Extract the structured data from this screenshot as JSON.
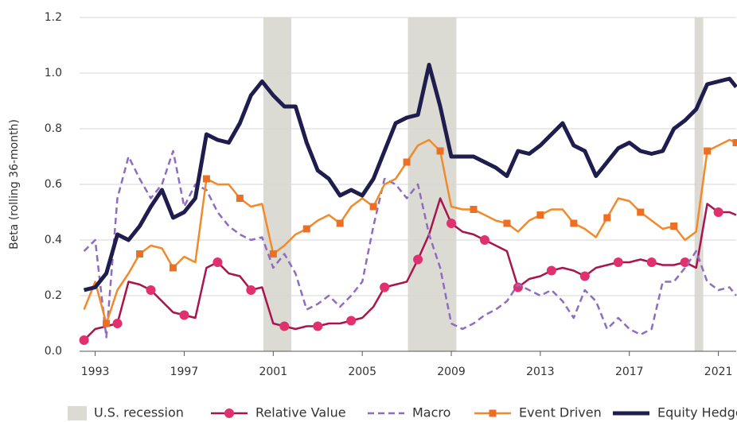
{
  "chart_data": {
    "type": "line",
    "y_label": "Beta (rolling 36-month)",
    "x": [
      1992.5,
      1993,
      1993.5,
      1994,
      1994.5,
      1995,
      1995.5,
      1996,
      1996.5,
      1997,
      1997.5,
      1998,
      1998.5,
      1999,
      1999.5,
      2000,
      2000.5,
      2001,
      2001.5,
      2002,
      2002.5,
      2003,
      2003.5,
      2004,
      2004.5,
      2005,
      2005.5,
      2006,
      2006.5,
      2007,
      2007.5,
      2008,
      2008.5,
      2009,
      2009.5,
      2010,
      2010.5,
      2011,
      2011.5,
      2012,
      2012.5,
      2013,
      2013.5,
      2014,
      2014.5,
      2015,
      2015.5,
      2016,
      2016.5,
      2017,
      2017.5,
      2018,
      2018.5,
      2019,
      2019.5,
      2020,
      2020.5,
      2021,
      2021.5,
      2021.8
    ],
    "xlim": [
      1992.3,
      2021.8
    ],
    "xticks": [
      1993,
      1997,
      2001,
      2005,
      2009,
      2013,
      2017,
      2021
    ],
    "ylim": [
      0,
      1.2
    ],
    "yticks": [
      {
        "value": 0,
        "label": "0.0"
      },
      0.2,
      0.4,
      0.6,
      0.8,
      {
        "value": 1,
        "label": "1.0"
      },
      1.2
    ],
    "grid": true,
    "legend_position": "bottom",
    "shaded_regions": {
      "name": "U.S. recession",
      "color": "#dcdbd3",
      "ranges": [
        [
          2000.56,
          2001.81
        ],
        [
          2007.05,
          2009.23
        ],
        [
          2019.93,
          2020.32
        ]
      ]
    },
    "series": [
      {
        "name": "Relative Value",
        "color": "#a8154c",
        "marker": "circle",
        "marker_color": "#e0306f",
        "line_width": 2.5,
        "line_style": "solid",
        "values": [
          0.04,
          0.08,
          0.09,
          0.1,
          0.25,
          0.24,
          0.22,
          0.18,
          0.14,
          0.13,
          0.12,
          0.3,
          0.32,
          0.28,
          0.27,
          0.22,
          0.23,
          0.1,
          0.09,
          0.08,
          0.09,
          0.09,
          0.1,
          0.1,
          0.11,
          0.12,
          0.16,
          0.23,
          0.24,
          0.25,
          0.33,
          0.42,
          0.55,
          0.46,
          0.43,
          0.42,
          0.4,
          0.38,
          0.36,
          0.23,
          0.26,
          0.27,
          0.29,
          0.3,
          0.29,
          0.27,
          0.3,
          0.31,
          0.32,
          0.32,
          0.33,
          0.32,
          0.31,
          0.31,
          0.32,
          0.3,
          0.53,
          0.5,
          0.5,
          0.49
        ]
      },
      {
        "name": "Macro",
        "color": "#8e6cc0",
        "marker": "none",
        "marker_color": "#8e6cc0",
        "line_width": 2.5,
        "line_style": "dashed",
        "values": [
          0.36,
          0.4,
          0.05,
          0.55,
          0.7,
          0.62,
          0.55,
          0.6,
          0.72,
          0.52,
          0.6,
          0.58,
          0.5,
          0.45,
          0.42,
          0.4,
          0.41,
          0.3,
          0.35,
          0.28,
          0.15,
          0.17,
          0.2,
          0.16,
          0.2,
          0.25,
          0.45,
          0.62,
          0.6,
          0.55,
          0.6,
          0.42,
          0.3,
          0.1,
          0.08,
          0.1,
          0.13,
          0.15,
          0.18,
          0.24,
          0.22,
          0.2,
          0.22,
          0.18,
          0.12,
          0.22,
          0.18,
          0.08,
          0.12,
          0.08,
          0.06,
          0.08,
          0.25,
          0.25,
          0.3,
          0.36,
          0.25,
          0.22,
          0.23,
          0.2
        ]
      },
      {
        "name": "Event Driven",
        "color": "#f18a2b",
        "marker": "square",
        "marker_color": "#ec6f24",
        "line_width": 2.5,
        "line_style": "solid",
        "values": [
          0.15,
          0.25,
          0.1,
          0.22,
          0.28,
          0.35,
          0.38,
          0.37,
          0.3,
          0.34,
          0.32,
          0.62,
          0.6,
          0.6,
          0.55,
          0.52,
          0.53,
          0.35,
          0.38,
          0.42,
          0.44,
          0.47,
          0.49,
          0.46,
          0.52,
          0.55,
          0.52,
          0.6,
          0.62,
          0.68,
          0.74,
          0.76,
          0.72,
          0.52,
          0.51,
          0.51,
          0.49,
          0.47,
          0.46,
          0.43,
          0.47,
          0.49,
          0.51,
          0.51,
          0.46,
          0.44,
          0.41,
          0.48,
          0.55,
          0.54,
          0.5,
          0.47,
          0.44,
          0.45,
          0.4,
          0.43,
          0.72,
          0.74,
          0.76,
          0.75
        ]
      },
      {
        "name": "Equity Hedge",
        "color": "#1f1d4d",
        "marker": "none",
        "marker_color": "#1f1d4d",
        "line_width": 5,
        "line_style": "solid",
        "values": [
          0.22,
          0.23,
          0.28,
          0.42,
          0.4,
          0.45,
          0.52,
          0.58,
          0.48,
          0.5,
          0.55,
          0.78,
          0.76,
          0.75,
          0.82,
          0.92,
          0.97,
          0.92,
          0.88,
          0.88,
          0.75,
          0.65,
          0.62,
          0.56,
          0.58,
          0.56,
          0.62,
          0.72,
          0.82,
          0.84,
          0.85,
          1.03,
          0.88,
          0.7,
          0.7,
          0.7,
          0.68,
          0.66,
          0.63,
          0.72,
          0.71,
          0.74,
          0.78,
          0.82,
          0.74,
          0.72,
          0.63,
          0.68,
          0.73,
          0.75,
          0.72,
          0.71,
          0.72,
          0.8,
          0.83,
          0.87,
          0.96,
          0.97,
          0.98,
          0.95
        ]
      }
    ]
  }
}
